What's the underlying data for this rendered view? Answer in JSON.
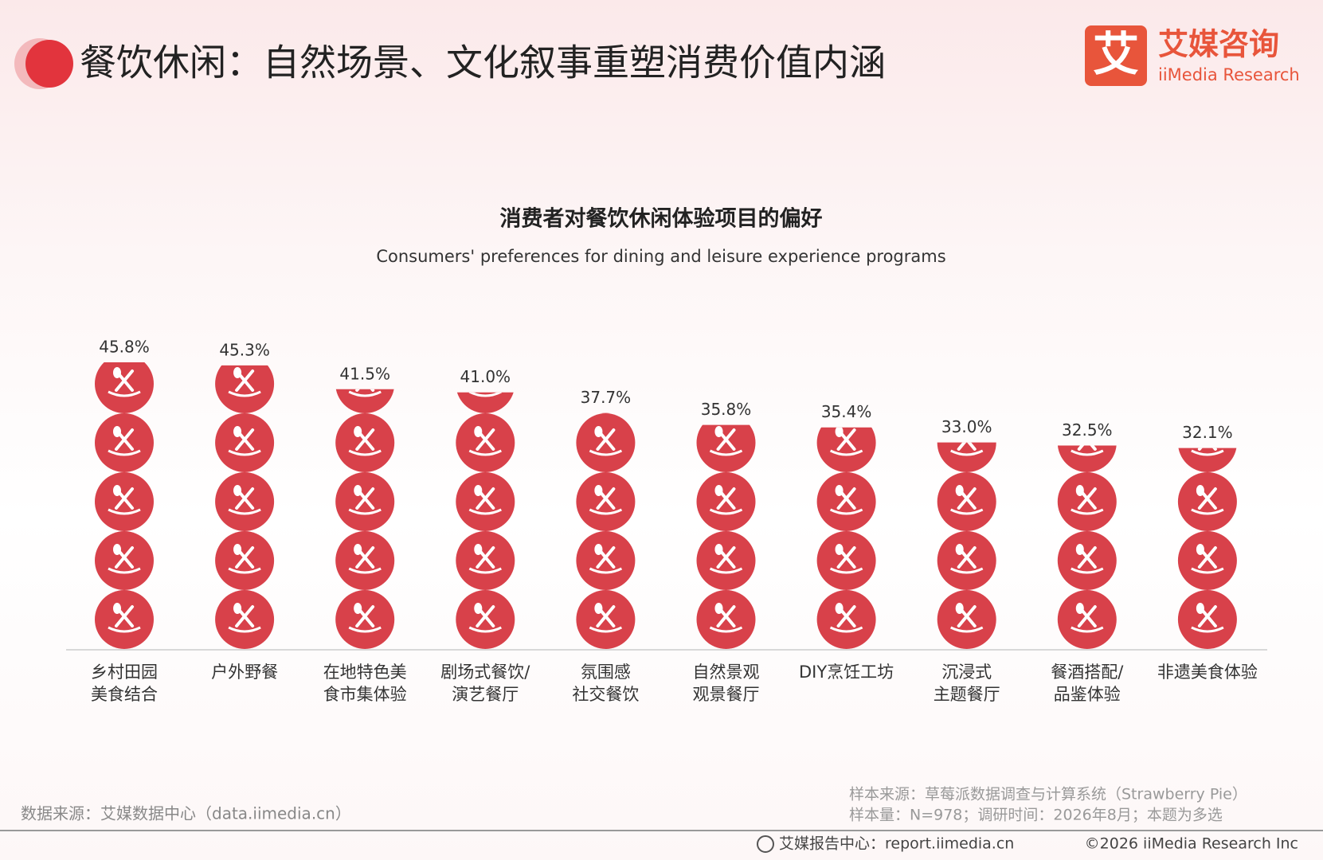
{
  "header": {
    "title": "餐饮休闲：自然场景、文化叙事重塑消费价值内涵",
    "logo": {
      "mark": "艾",
      "name": "艾媒咨询",
      "en": "iiMedia Research"
    }
  },
  "chart_data": {
    "type": "pictogram",
    "title": "消费者对餐饮休闲体验项目的偏好",
    "subtitle": "Consumers' preferences for dining and leisure experience programs",
    "categories": [
      "乡村田园\n美食结合",
      "户外野餐",
      "在地特色美\n食市集体验",
      "剧场式餐饮/\n演艺餐厅",
      "氛围感\n社交餐饮",
      "自然景观\n观景餐厅",
      "DIY烹饪工坊",
      "沉浸式\n主题餐厅",
      "餐酒搭配/\n品鉴体验",
      "非遗美食体验"
    ],
    "values": [
      45.8,
      45.3,
      41.5,
      41.0,
      37.7,
      35.8,
      35.4,
      33.0,
      32.5,
      32.1
    ],
    "value_labels": [
      "45.8%",
      "45.3%",
      "41.5%",
      "41.0%",
      "37.7%",
      "35.8%",
      "35.4%",
      "33.0%",
      "32.5%",
      "32.1%"
    ],
    "color": "#d8414a"
  },
  "footer": {
    "source": "数据来源：艾媒数据中心（data.iimedia.cn）",
    "sample_source": "样本来源：草莓派数据调查与计算系统（Strawberry Pie）",
    "sample_info": "样本量：N=978；调研时间：2026年8月；本题为多选",
    "report_center": "艾媒报告中心：report.iimedia.cn",
    "copyright": "©2026  iiMedia Research  Inc"
  }
}
